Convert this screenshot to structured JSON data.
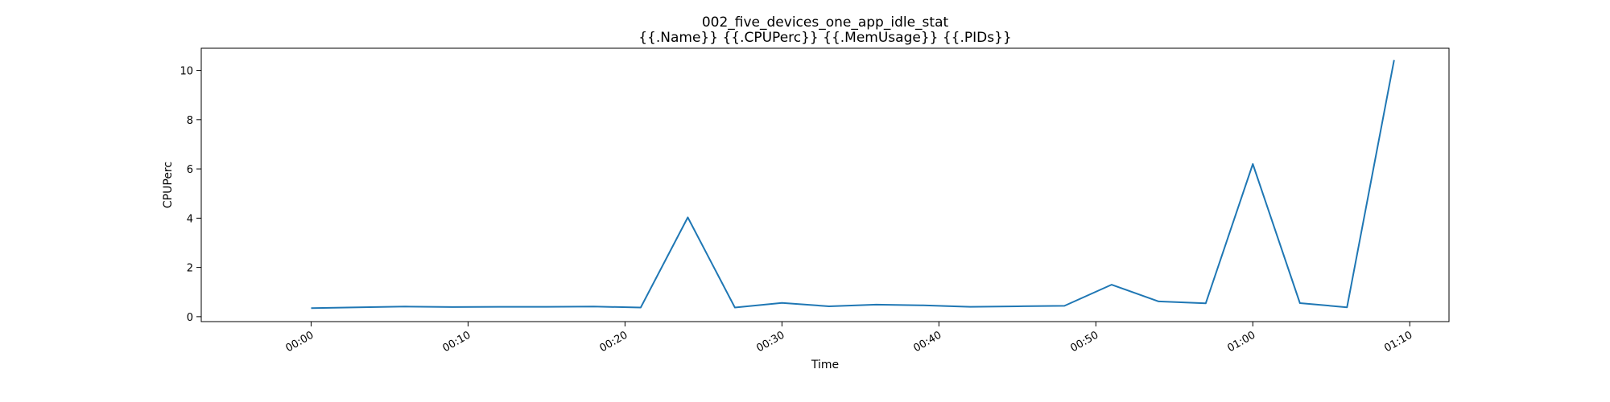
{
  "chart_data": {
    "type": "line",
    "title": "002_five_devices_one_app_idle_stat",
    "subtitle": "{{.Name}} {{.CPUPerc}} {{.MemUsage}}  {{.PIDs}}",
    "xlabel": "Time",
    "ylabel": "CPUPerc",
    "x_unit": "minutes",
    "xlim": [
      -7,
      72.5
    ],
    "ylim": [
      -0.2,
      10.9
    ],
    "x_ticks": [
      {
        "value": 0,
        "label": "00:00"
      },
      {
        "value": 10,
        "label": "00:10"
      },
      {
        "value": 20,
        "label": "00:20"
      },
      {
        "value": 30,
        "label": "00:30"
      },
      {
        "value": 40,
        "label": "00:40"
      },
      {
        "value": 50,
        "label": "00:50"
      },
      {
        "value": 60,
        "label": "01:00"
      },
      {
        "value": 70,
        "label": "01:10"
      }
    ],
    "y_ticks": [
      {
        "value": 0,
        "label": "0"
      },
      {
        "value": 2,
        "label": "2"
      },
      {
        "value": 4,
        "label": "4"
      },
      {
        "value": 6,
        "label": "6"
      },
      {
        "value": 8,
        "label": "8"
      },
      {
        "value": 10,
        "label": "10"
      }
    ],
    "series": [
      {
        "name": "CPUPerc",
        "color": "#1f77b4",
        "x": [
          0,
          3,
          6,
          9,
          12,
          15,
          18,
          21,
          24,
          27,
          30,
          33,
          36,
          39,
          42,
          45,
          48,
          51,
          54,
          57,
          60,
          63,
          66,
          69
        ],
        "values": [
          0.35,
          0.38,
          0.41,
          0.39,
          0.4,
          0.4,
          0.41,
          0.37,
          4.03,
          0.37,
          0.56,
          0.42,
          0.49,
          0.46,
          0.4,
          0.42,
          0.44,
          1.3,
          0.62,
          0.54,
          6.2,
          0.55,
          0.38,
          10.42
        ]
      }
    ],
    "grid": false,
    "legend": "none"
  }
}
